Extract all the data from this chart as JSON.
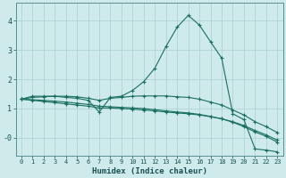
{
  "xlabel": "Humidex (Indice chaleur)",
  "bg_color": "#ceeaea",
  "grid_color": "#aad0d0",
  "line_color": "#1a7060",
  "xlim": [
    -0.5,
    23.5
  ],
  "ylim": [
    -0.6,
    4.6
  ],
  "yticks": [
    0,
    1,
    2,
    3,
    4
  ],
  "ytick_labels": [
    "-0",
    "1",
    "2",
    "3",
    "4"
  ],
  "xticks": [
    0,
    1,
    2,
    3,
    4,
    5,
    6,
    7,
    8,
    9,
    10,
    11,
    12,
    13,
    14,
    15,
    16,
    17,
    18,
    19,
    20,
    21,
    22,
    23
  ],
  "series": [
    {
      "x": [
        0,
        1,
        2,
        3,
        4,
        5,
        6,
        7,
        8,
        9,
        10,
        11,
        12,
        13,
        14,
        15,
        16,
        17,
        18,
        19,
        20,
        21,
        22,
        23
      ],
      "y": [
        1.32,
        1.42,
        1.42,
        1.42,
        1.38,
        1.35,
        1.28,
        0.88,
        1.38,
        1.42,
        1.62,
        1.92,
        2.38,
        3.12,
        3.78,
        4.18,
        3.85,
        3.28,
        2.72,
        0.82,
        0.62,
        -0.38,
        -0.42,
        -0.48
      ]
    },
    {
      "x": [
        0,
        1,
        2,
        3,
        4,
        5,
        6,
        7,
        8,
        9,
        10,
        11,
        12,
        13,
        14,
        15,
        16,
        17,
        18,
        19,
        20,
        21,
        22,
        23
      ],
      "y": [
        1.32,
        1.38,
        1.4,
        1.42,
        1.42,
        1.4,
        1.35,
        1.28,
        1.35,
        1.38,
        1.42,
        1.43,
        1.43,
        1.43,
        1.4,
        1.38,
        1.32,
        1.22,
        1.12,
        0.95,
        0.78,
        0.55,
        0.38,
        0.18
      ]
    },
    {
      "x": [
        0,
        1,
        2,
        3,
        4,
        5,
        6,
        7,
        8,
        9,
        10,
        11,
        12,
        13,
        14,
        15,
        16,
        17,
        18,
        19,
        20,
        21,
        22,
        23
      ],
      "y": [
        1.32,
        1.28,
        1.24,
        1.2,
        1.16,
        1.12,
        1.08,
        1.02,
        1.02,
        1.0,
        0.98,
        0.95,
        0.92,
        0.88,
        0.85,
        0.82,
        0.78,
        0.72,
        0.65,
        0.55,
        0.42,
        0.25,
        0.1,
        -0.08
      ]
    },
    {
      "x": [
        0,
        1,
        2,
        3,
        4,
        5,
        6,
        7,
        8,
        9,
        10,
        11,
        12,
        13,
        14,
        15,
        16,
        17,
        18,
        19,
        20,
        21,
        22,
        23
      ],
      "y": [
        1.32,
        1.3,
        1.28,
        1.25,
        1.22,
        1.18,
        1.14,
        1.08,
        1.06,
        1.04,
        1.02,
        1.0,
        0.96,
        0.92,
        0.88,
        0.85,
        0.8,
        0.73,
        0.65,
        0.53,
        0.38,
        0.2,
        0.05,
        -0.15
      ]
    }
  ]
}
